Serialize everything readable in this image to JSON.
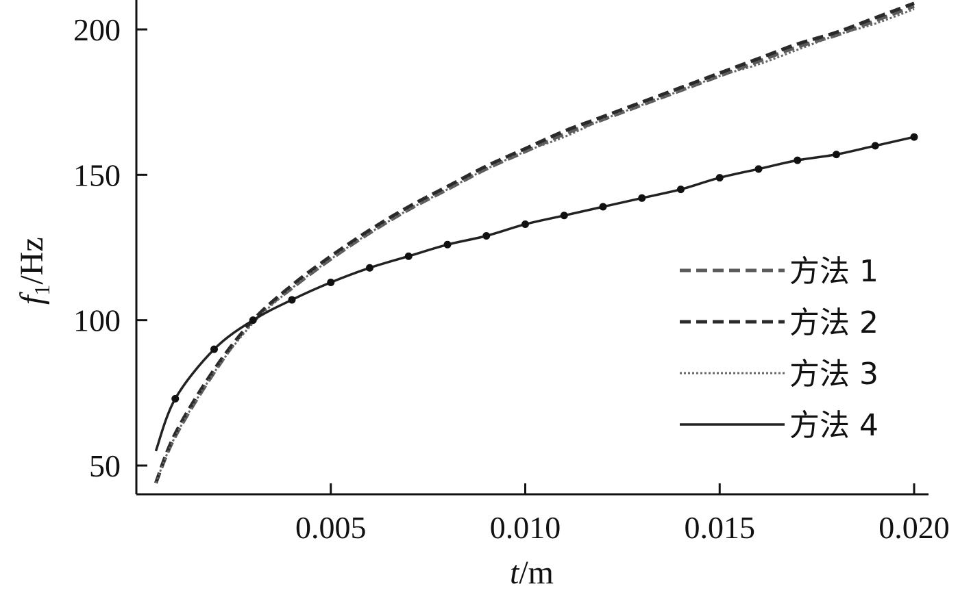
{
  "chart_data": {
    "type": "line",
    "x_label": {
      "italic": "t",
      "rest": "/m"
    },
    "y_label": {
      "italic": "f",
      "subscript": "1",
      "rest": "/Hz"
    },
    "xlim": [
      0.0,
      0.02
    ],
    "ylim": [
      45,
      210
    ],
    "x_ticks": [
      0.005,
      0.01,
      0.015,
      0.02
    ],
    "x_tick_labels": [
      "0.005",
      "0.010",
      "0.015",
      "0.020"
    ],
    "y_ticks": [
      50,
      100,
      150,
      200
    ],
    "y_tick_labels": [
      "50",
      "100",
      "150",
      "200"
    ],
    "grid": false,
    "legend_position": "right",
    "series": [
      {
        "name": "方法 1",
        "style": "dashed",
        "color": "#5a5a5a",
        "x": [
          0.0005,
          0.001,
          0.002,
          0.003,
          0.004,
          0.005,
          0.006,
          0.007,
          0.008,
          0.009,
          0.01,
          0.011,
          0.012,
          0.013,
          0.014,
          0.015,
          0.016,
          0.017,
          0.018,
          0.019,
          0.02
        ],
        "values": [
          44,
          60,
          82,
          100,
          111,
          121,
          130,
          138,
          145,
          152,
          158,
          164,
          169,
          174,
          179,
          184,
          189,
          194,
          198,
          203,
          208
        ]
      },
      {
        "name": "方法 2",
        "style": "dashed",
        "color": "#2a2a2a",
        "x": [
          0.0005,
          0.001,
          0.002,
          0.003,
          0.004,
          0.005,
          0.006,
          0.007,
          0.008,
          0.009,
          0.01,
          0.011,
          0.012,
          0.013,
          0.014,
          0.015,
          0.016,
          0.017,
          0.018,
          0.019,
          0.02
        ],
        "values": [
          44,
          61,
          83,
          100,
          112,
          122,
          131,
          139,
          146,
          153,
          159,
          165,
          170,
          175,
          180,
          185,
          190,
          195,
          199,
          204,
          209
        ]
      },
      {
        "name": "方法 3",
        "style": "dotted",
        "color": "#666666",
        "x": [
          0.0005,
          0.001,
          0.002,
          0.003,
          0.004,
          0.005,
          0.006,
          0.007,
          0.008,
          0.009,
          0.01,
          0.011,
          0.012,
          0.013,
          0.014,
          0.015,
          0.016,
          0.017,
          0.018,
          0.019,
          0.02
        ],
        "values": [
          44,
          60,
          82,
          99,
          111,
          121,
          130,
          138,
          145,
          152,
          158,
          163,
          169,
          174,
          179,
          184,
          188,
          193,
          198,
          202,
          207
        ]
      },
      {
        "name": "方法 4",
        "style": "solid",
        "color": "#222222",
        "x": [
          0.0005,
          0.001,
          0.002,
          0.003,
          0.004,
          0.005,
          0.006,
          0.007,
          0.008,
          0.009,
          0.01,
          0.011,
          0.012,
          0.013,
          0.014,
          0.015,
          0.016,
          0.017,
          0.018,
          0.019,
          0.02
        ],
        "values": [
          55,
          73,
          90,
          100,
          107,
          113,
          118,
          122,
          126,
          129,
          133,
          136,
          139,
          142,
          145,
          149,
          152,
          155,
          157,
          160,
          163
        ]
      }
    ],
    "markers": {
      "series": "方法 4",
      "x": [
        0.001,
        0.002,
        0.003,
        0.004,
        0.005,
        0.006,
        0.007,
        0.008,
        0.009,
        0.01,
        0.011,
        0.012,
        0.013,
        0.014,
        0.015,
        0.016,
        0.017,
        0.018,
        0.019,
        0.02
      ],
      "values": [
        73,
        90,
        100,
        107,
        113,
        118,
        122,
        126,
        129,
        133,
        136,
        139,
        142,
        145,
        149,
        152,
        155,
        157,
        160,
        163
      ]
    }
  }
}
